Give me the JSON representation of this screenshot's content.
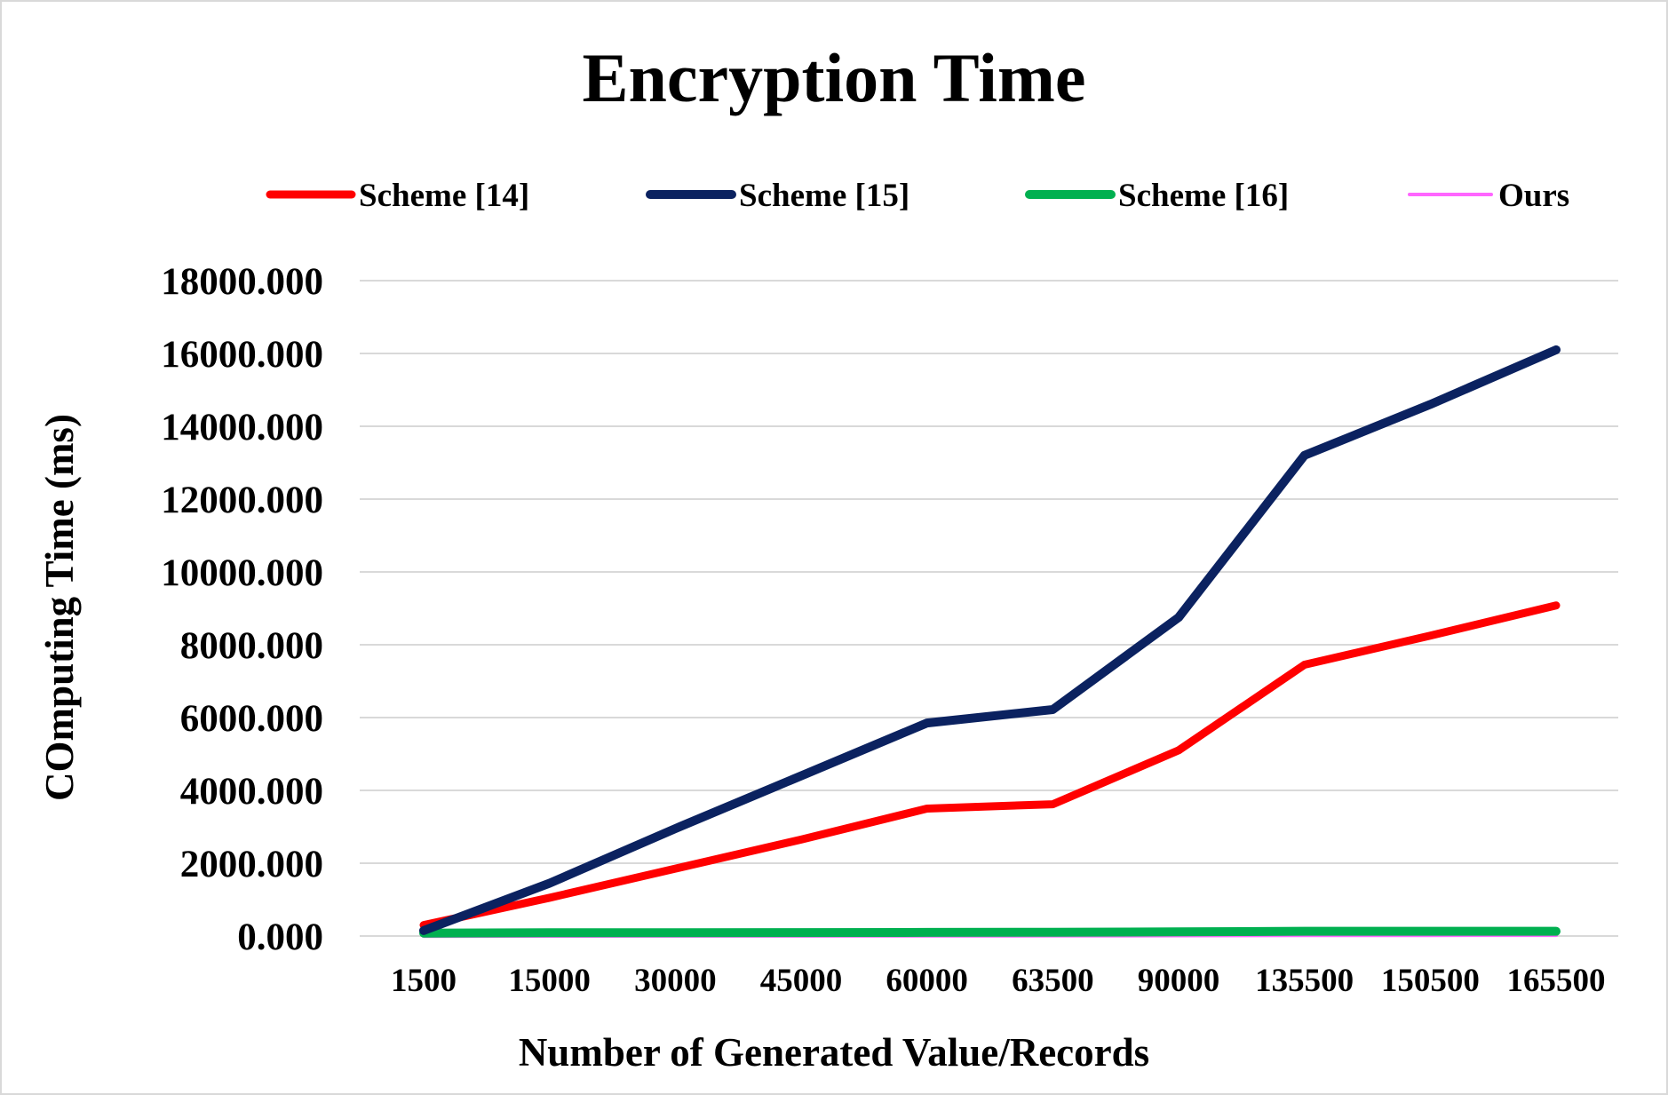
{
  "chart_data": {
    "type": "line",
    "title": "Encryption Time",
    "xlabel": "Number of Generated Value/Records",
    "ylabel": "COmputing Time (ms)",
    "categories": [
      "1500",
      "15000",
      "30000",
      "45000",
      "60000",
      "63500",
      "90000",
      "135500",
      "150500",
      "165500"
    ],
    "y_ticks": [
      "0.000",
      "2000.000",
      "4000.000",
      "6000.000",
      "8000.000",
      "10000.000",
      "12000.000",
      "14000.000",
      "16000.000",
      "18000.000"
    ],
    "ylim": [
      0,
      18000
    ],
    "grid": true,
    "legend_position": "top",
    "series": [
      {
        "name": "Scheme [14]",
        "color": "#ff0000",
        "values": [
          300,
          1050,
          1850,
          2650,
          3500,
          3620,
          5100,
          7450,
          8250,
          9080
        ]
      },
      {
        "name": "Scheme [15]",
        "color": "#0b2260",
        "values": [
          150,
          1450,
          2950,
          4400,
          5850,
          6220,
          8750,
          13200,
          14600,
          16100
        ]
      },
      {
        "name": "Scheme [16]",
        "color": "#00b050",
        "values": [
          80,
          90,
          90,
          95,
          100,
          105,
          115,
          130,
          130,
          130
        ]
      },
      {
        "name": "Ours",
        "color": "#ff66ff",
        "values": [
          10,
          12,
          14,
          16,
          18,
          20,
          24,
          30,
          32,
          34
        ]
      }
    ]
  }
}
